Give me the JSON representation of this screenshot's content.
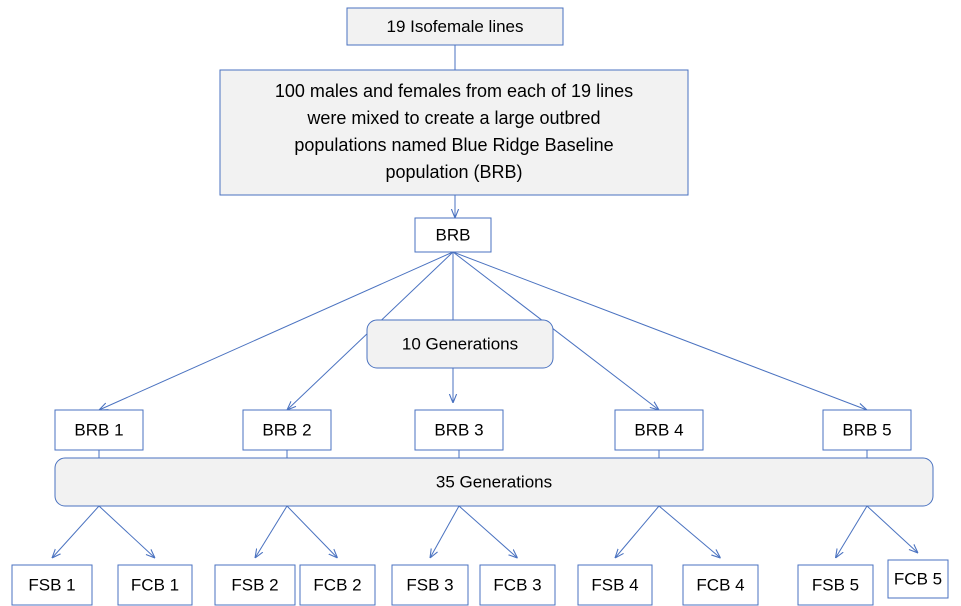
{
  "nodes": [
    {
      "id": "iso",
      "label": "19 Isofemale  lines"
    },
    {
      "id": "mix",
      "lines": [
        "100 males and females from each of 19 lines",
        "were mixed to create a large outbred",
        "populations named Blue Ridge Baseline",
        "population (BRB)"
      ]
    },
    {
      "id": "brb",
      "label": "BRB"
    },
    {
      "id": "gen10",
      "label": "10 Generations"
    },
    {
      "id": "brb1",
      "label": "BRB 1"
    },
    {
      "id": "brb2",
      "label": "BRB 2"
    },
    {
      "id": "brb3",
      "label": "BRB 3"
    },
    {
      "id": "brb4",
      "label": "BRB 4"
    },
    {
      "id": "brb5",
      "label": "BRB 5"
    },
    {
      "id": "gen35",
      "label": "35 Generations"
    },
    {
      "id": "fsb1",
      "label": "FSB 1"
    },
    {
      "id": "fcb1",
      "label": "FCB 1"
    },
    {
      "id": "fsb2",
      "label": "FSB 2"
    },
    {
      "id": "fcb2",
      "label": "FCB 2"
    },
    {
      "id": "fsb3",
      "label": "FSB 3"
    },
    {
      "id": "fcb3",
      "label": "FCB 3"
    },
    {
      "id": "fsb4",
      "label": "FSB 4"
    },
    {
      "id": "fcb4",
      "label": "FCB 4"
    },
    {
      "id": "fsb5",
      "label": "FSB 5"
    },
    {
      "id": "fcb5",
      "label": "FCB 5"
    }
  ]
}
